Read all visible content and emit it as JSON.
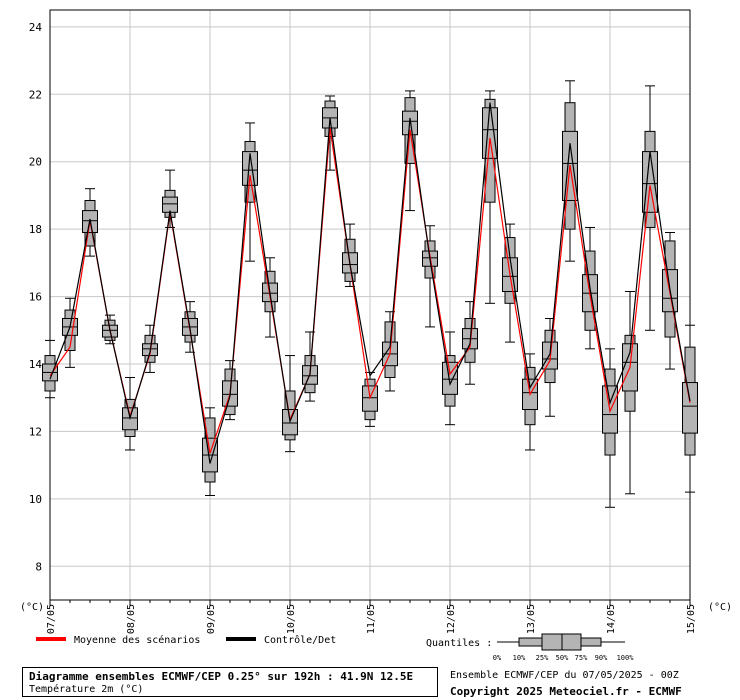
{
  "chart_data": {
    "type": "box",
    "y_unit_left": "(°C)",
    "y_unit_right": "(°C)",
    "ylim": [
      7,
      24.5
    ],
    "yticks": [
      8,
      10,
      12,
      14,
      16,
      18,
      20,
      22,
      24
    ],
    "grid": true,
    "x_tick_labels": [
      "07/05",
      "08/05",
      "09/05",
      "10/05",
      "11/05",
      "12/05",
      "13/05",
      "14/05",
      "15/05"
    ],
    "steps_per_day": 4,
    "boxes": [
      {
        "p0": 13.0,
        "p10": 13.2,
        "p25": 13.5,
        "p50": 13.75,
        "p75": 14.0,
        "p90": 14.25,
        "p100": 14.7
      },
      {
        "p0": 13.9,
        "p10": 14.4,
        "p25": 14.85,
        "p50": 15.1,
        "p75": 15.35,
        "p90": 15.6,
        "p100": 15.95
      },
      {
        "p0": 17.2,
        "p10": 17.5,
        "p25": 17.9,
        "p50": 18.25,
        "p75": 18.55,
        "p90": 18.85,
        "p100": 19.2
      },
      {
        "p0": 14.6,
        "p10": 14.7,
        "p25": 14.8,
        "p50": 15.0,
        "p75": 15.15,
        "p90": 15.3,
        "p100": 15.45
      },
      {
        "p0": 11.45,
        "p10": 11.85,
        "p25": 12.05,
        "p50": 12.4,
        "p75": 12.7,
        "p90": 12.95,
        "p100": 13.6
      },
      {
        "p0": 13.75,
        "p10": 14.05,
        "p25": 14.25,
        "p50": 14.45,
        "p75": 14.6,
        "p90": 14.85,
        "p100": 15.15
      },
      {
        "p0": 18.05,
        "p10": 18.35,
        "p25": 18.5,
        "p50": 18.75,
        "p75": 18.95,
        "p90": 19.15,
        "p100": 19.75
      },
      {
        "p0": 14.35,
        "p10": 14.65,
        "p25": 14.85,
        "p50": 15.1,
        "p75": 15.35,
        "p90": 15.55,
        "p100": 15.85
      },
      {
        "p0": 10.1,
        "p10": 10.5,
        "p25": 10.8,
        "p50": 11.3,
        "p75": 11.8,
        "p90": 12.4,
        "p100": 12.7
      },
      {
        "p0": 12.35,
        "p10": 12.5,
        "p25": 12.75,
        "p50": 13.1,
        "p75": 13.5,
        "p90": 13.85,
        "p100": 14.1
      },
      {
        "p0": 17.05,
        "p10": 18.8,
        "p25": 19.3,
        "p50": 19.75,
        "p75": 20.3,
        "p90": 20.6,
        "p100": 21.15
      },
      {
        "p0": 14.8,
        "p10": 15.55,
        "p25": 15.85,
        "p50": 16.1,
        "p75": 16.4,
        "p90": 16.75,
        "p100": 17.15
      },
      {
        "p0": 11.4,
        "p10": 11.75,
        "p25": 11.9,
        "p50": 12.25,
        "p75": 12.65,
        "p90": 13.2,
        "p100": 14.25
      },
      {
        "p0": 12.9,
        "p10": 13.15,
        "p25": 13.4,
        "p50": 13.65,
        "p75": 13.95,
        "p90": 14.25,
        "p100": 14.95
      },
      {
        "p0": 19.75,
        "p10": 20.75,
        "p25": 21.0,
        "p50": 21.3,
        "p75": 21.6,
        "p90": 21.8,
        "p100": 21.95
      },
      {
        "p0": 16.3,
        "p10": 16.45,
        "p25": 16.7,
        "p50": 16.95,
        "p75": 17.3,
        "p90": 17.7,
        "p100": 18.15
      },
      {
        "p0": 12.15,
        "p10": 12.35,
        "p25": 12.6,
        "p50": 13.0,
        "p75": 13.35,
        "p90": 13.55,
        "p100": 13.75
      },
      {
        "p0": 13.2,
        "p10": 13.6,
        "p25": 13.95,
        "p50": 14.3,
        "p75": 14.65,
        "p90": 15.25,
        "p100": 15.55
      },
      {
        "p0": 18.55,
        "p10": 19.95,
        "p25": 20.8,
        "p50": 21.2,
        "p75": 21.5,
        "p90": 21.9,
        "p100": 22.1
      },
      {
        "p0": 15.1,
        "p10": 16.55,
        "p25": 16.9,
        "p50": 17.15,
        "p75": 17.35,
        "p90": 17.65,
        "p100": 18.1
      },
      {
        "p0": 12.2,
        "p10": 12.75,
        "p25": 13.1,
        "p50": 13.55,
        "p75": 14.05,
        "p90": 14.25,
        "p100": 14.95
      },
      {
        "p0": 13.4,
        "p10": 14.05,
        "p25": 14.45,
        "p50": 14.75,
        "p75": 15.05,
        "p90": 15.35,
        "p100": 15.85
      },
      {
        "p0": 15.8,
        "p10": 18.8,
        "p25": 20.1,
        "p50": 20.95,
        "p75": 21.6,
        "p90": 21.85,
        "p100": 22.1
      },
      {
        "p0": 14.65,
        "p10": 15.8,
        "p25": 16.15,
        "p50": 16.6,
        "p75": 17.15,
        "p90": 17.75,
        "p100": 18.15
      },
      {
        "p0": 11.45,
        "p10": 12.2,
        "p25": 12.65,
        "p50": 13.15,
        "p75": 13.55,
        "p90": 13.9,
        "p100": 14.3
      },
      {
        "p0": 12.45,
        "p10": 13.45,
        "p25": 13.85,
        "p50": 14.15,
        "p75": 14.65,
        "p90": 15.0,
        "p100": 15.35
      },
      {
        "p0": 17.05,
        "p10": 18.0,
        "p25": 18.85,
        "p50": 19.95,
        "p75": 20.9,
        "p90": 21.75,
        "p100": 22.4
      },
      {
        "p0": 14.45,
        "p10": 15.0,
        "p25": 15.55,
        "p50": 16.1,
        "p75": 16.65,
        "p90": 17.35,
        "p100": 18.05
      },
      {
        "p0": 9.75,
        "p10": 11.3,
        "p25": 11.95,
        "p50": 12.5,
        "p75": 13.35,
        "p90": 13.85,
        "p100": 14.45
      },
      {
        "p0": 10.15,
        "p10": 12.6,
        "p25": 13.2,
        "p50": 14.05,
        "p75": 14.6,
        "p90": 14.85,
        "p100": 16.15
      },
      {
        "p0": 15.0,
        "p10": 18.05,
        "p25": 18.5,
        "p50": 19.35,
        "p75": 20.3,
        "p90": 20.9,
        "p100": 22.25
      },
      {
        "p0": 13.85,
        "p10": 14.8,
        "p25": 15.55,
        "p50": 15.95,
        "p75": 16.8,
        "p90": 17.65,
        "p100": 17.9
      },
      {
        "p0": 10.2,
        "p10": 11.3,
        "p25": 11.95,
        "p50": 12.75,
        "p75": 13.45,
        "p90": 14.5,
        "p100": 15.15
      }
    ],
    "series": [
      {
        "name": "Moyenne des scénarios",
        "color": "#ff0000",
        "values": [
          13.65,
          14.5,
          18.25,
          15.0,
          12.45,
          14.3,
          18.5,
          15.0,
          11.35,
          13.1,
          19.6,
          16.0,
          12.35,
          13.7,
          21.0,
          16.95,
          13.0,
          14.3,
          20.95,
          17.2,
          13.7,
          14.5,
          20.7,
          16.65,
          13.1,
          14.1,
          19.9,
          16.05,
          12.6,
          13.9,
          19.3,
          16.1,
          12.85
        ]
      },
      {
        "name": "Contrôle/Det",
        "color": "#000000",
        "values": [
          13.55,
          15.1,
          18.3,
          15.0,
          12.4,
          14.35,
          18.55,
          15.05,
          11.05,
          13.05,
          20.25,
          16.1,
          12.3,
          13.7,
          21.3,
          16.95,
          13.65,
          14.5,
          21.3,
          17.1,
          13.4,
          14.6,
          21.75,
          17.15,
          13.3,
          14.3,
          20.55,
          16.25,
          12.85,
          14.35,
          20.3,
          16.2,
          12.9
        ]
      }
    ]
  },
  "legend": {
    "mean_label": "Moyenne des scénarios",
    "control_label": "Contrôle/Det",
    "quantiles_label": "Quantiles :",
    "quantile_ticks": [
      "0%",
      "10%",
      "25%",
      "50%",
      "75%",
      "90%",
      "100%"
    ]
  },
  "footer": {
    "title": "Diagramme ensembles ECMWF/CEP 0.25° sur 192h : 41.9N 12.5E",
    "subtitle": "Température 2m (°C)",
    "run_info": "Ensemble ECMWF/CEP du 07/05/2025 - 00Z",
    "copyright": "Copyright 2025 Meteociel.fr - ECMWF"
  },
  "colors": {
    "box_fill": "#b4b4b4",
    "grid": "#c8c8c8",
    "mean_line": "#ff0000",
    "control_line": "#000000"
  }
}
